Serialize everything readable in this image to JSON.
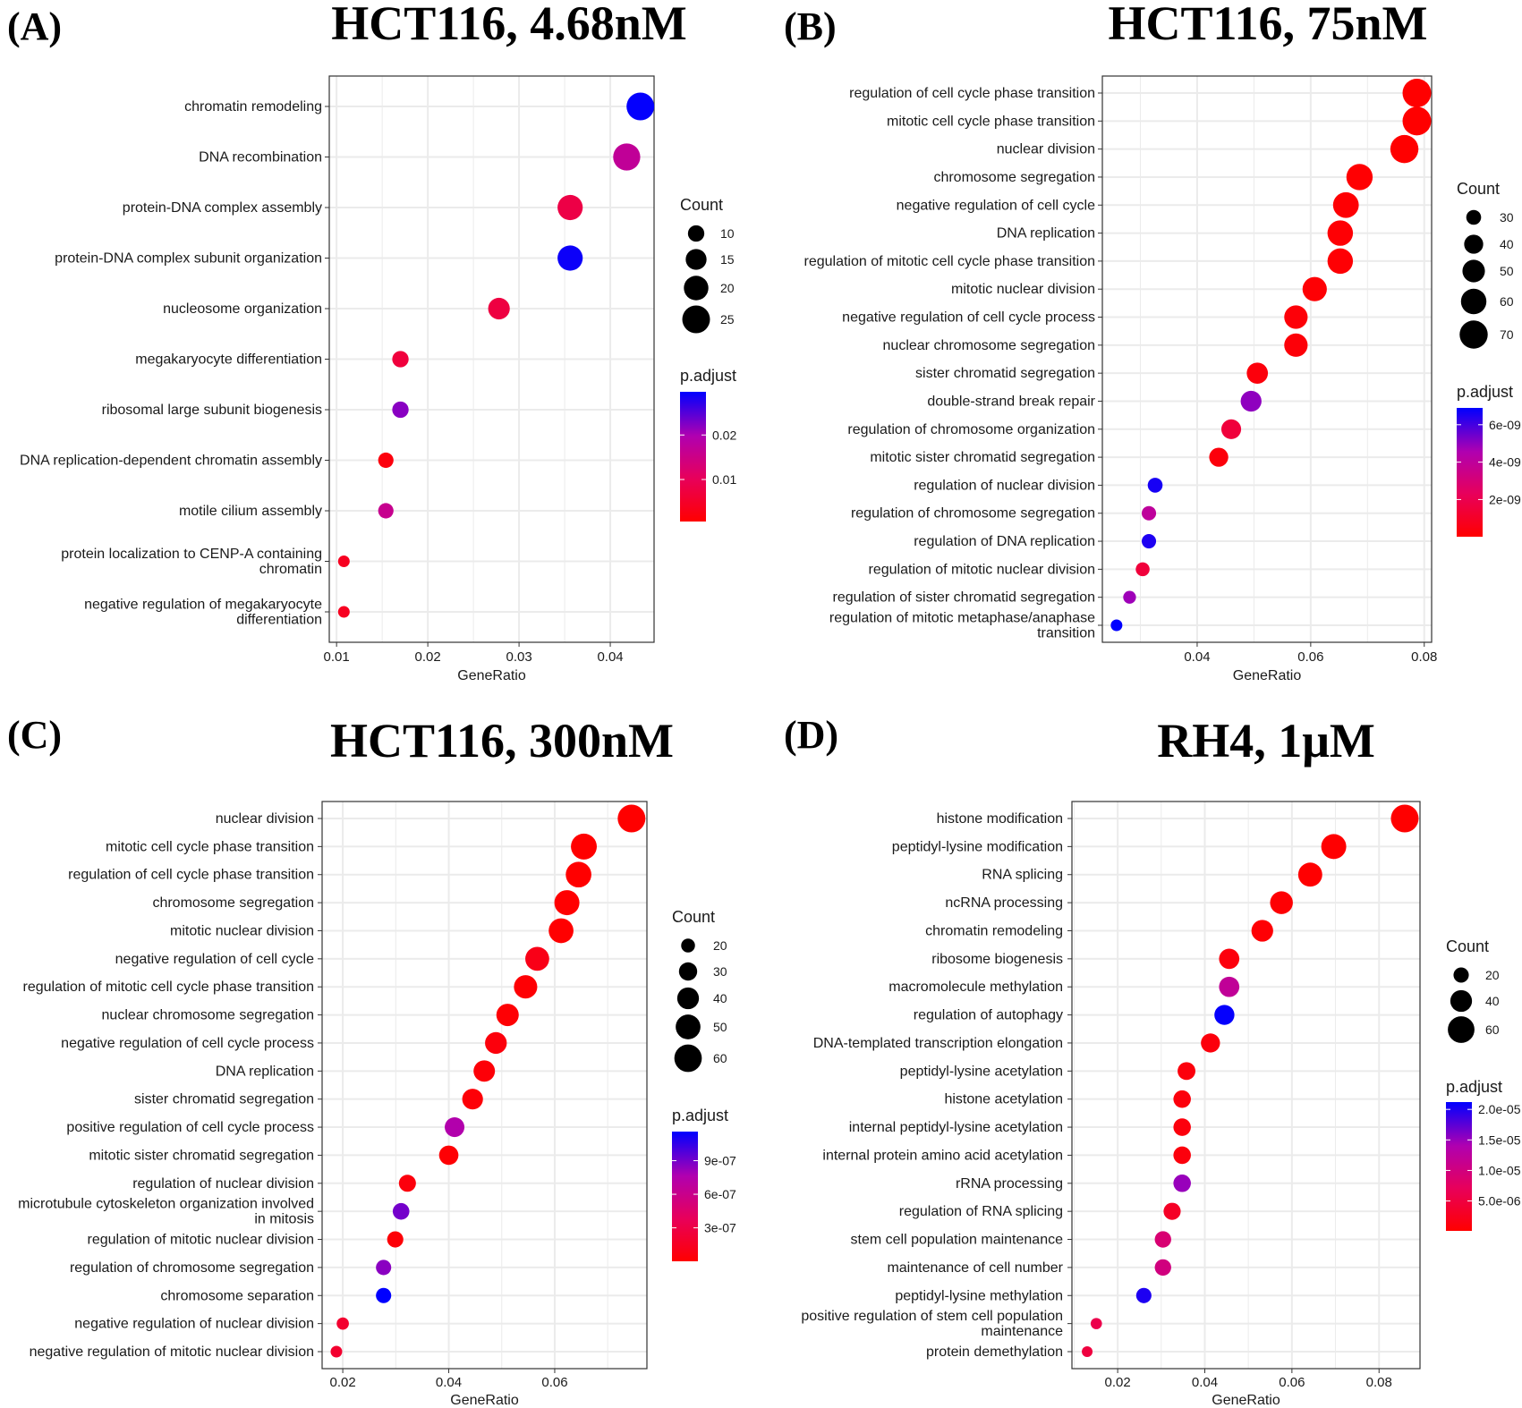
{
  "colors": {
    "low": "#FF0000",
    "high": "#0000FF",
    "grid": "#EBEBEB",
    "frame": "#333333"
  },
  "chart_data": [
    {
      "type": "scatter",
      "panel_label": "(A)",
      "title": "HCT116, 4.68nM",
      "xlabel": "GeneRatio",
      "xlim": [
        0.0092,
        0.0448
      ],
      "xticks": [
        0.01,
        0.02,
        0.03,
        0.04
      ],
      "xtick_labels": [
        "0.01",
        "0.02",
        "0.03",
        "0.04"
      ],
      "grid": true,
      "legend_placement": "right",
      "size_legend": {
        "title": "Count",
        "breaks": [
          10,
          15,
          20,
          25
        ],
        "labels": [
          "10",
          "15",
          "20",
          "25"
        ]
      },
      "color_legend": {
        "title": "p.adjust",
        "range": [
          0.00056,
          0.0297
        ],
        "ticks": [
          0.01,
          0.02
        ],
        "labels": [
          "0.01",
          "0.02"
        ]
      },
      "categories": [
        "chromatin remodeling",
        "DNA recombination",
        "protein-DNA complex assembly",
        "protein-DNA complex subunit organization",
        "nucleosome organization",
        "megakaryocyte differentiation",
        "ribosomal large subunit biogenesis",
        "DNA replication-dependent chromatin assembly",
        "motile cilium assembly",
        "protein localization to CENP-A containing\nchromatin",
        "negative regulation of megakaryocyte\ndifferentiation"
      ],
      "x": [
        0.0433,
        0.0418,
        0.0356,
        0.0356,
        0.0278,
        0.017,
        0.017,
        0.0154,
        0.0154,
        0.0108,
        0.0108
      ],
      "count": [
        25,
        24,
        21,
        21,
        16,
        10,
        10,
        9,
        9,
        6,
        6
      ],
      "p_adjust": [
        0.0295,
        0.017,
        0.008,
        0.029,
        0.0075,
        0.007,
        0.022,
        0.002,
        0.016,
        0.004,
        0.004
      ]
    },
    {
      "type": "scatter",
      "panel_label": "(B)",
      "title": "HCT116, 75nM",
      "xlabel": "GeneRatio",
      "xlim": [
        0.0233,
        0.0813
      ],
      "xticks": [
        0.04,
        0.06,
        0.08
      ],
      "xtick_labels": [
        "0.04",
        "0.06",
        "0.08"
      ],
      "grid": true,
      "legend_placement": "right",
      "size_legend": {
        "title": "Count",
        "breaks": [
          30,
          40,
          50,
          60,
          70
        ],
        "labels": [
          "30",
          "40",
          "50",
          "60",
          "70"
        ]
      },
      "color_legend": {
        "title": "p.adjust",
        "range": [
          1e-11,
          6.9e-09
        ],
        "ticks": [
          2e-09,
          4e-09,
          6e-09
        ],
        "labels": [
          "2e-09",
          "4e-09",
          "6e-09"
        ]
      },
      "categories": [
        "regulation of cell cycle phase transition",
        "mitotic cell cycle phase transition",
        "nuclear division",
        "chromosome segregation",
        "negative regulation of cell cycle",
        "DNA replication",
        "regulation of mitotic cell cycle phase transition",
        "mitotic nuclear division",
        "negative regulation of cell cycle process",
        "nuclear chromosome segregation",
        "sister chromatid segregation",
        "double-strand break repair",
        "regulation of chromosome organization",
        "mitotic sister chromatid segregation",
        "regulation of nuclear division",
        "regulation of chromosome segregation",
        "regulation of DNA replication",
        "regulation of mitotic nuclear division",
        "regulation of sister chromatid segregation",
        "regulation of mitotic metaphase/anaphase\ntransition"
      ],
      "x": [
        0.0787,
        0.0787,
        0.0765,
        0.0686,
        0.0662,
        0.0652,
        0.0652,
        0.0607,
        0.0574,
        0.0574,
        0.0506,
        0.0495,
        0.046,
        0.0438,
        0.0326,
        0.0315,
        0.0315,
        0.0304,
        0.0281,
        0.0258
      ],
      "count": [
        72,
        72,
        70,
        63,
        61,
        60,
        60,
        56,
        53,
        53,
        46,
        45,
        42,
        40,
        30,
        29,
        29,
        28,
        26,
        24
      ],
      "p_adjust": [
        1e-11,
        1e-11,
        2e-11,
        5e-11,
        8e-11,
        1e-10,
        1e-10,
        1.2e-10,
        2e-10,
        2e-10,
        3e-10,
        5e-09,
        1.5e-09,
        3e-10,
        6.6e-09,
        4e-09,
        6.5e-09,
        1.5e-09,
        4.8e-09,
        6.9e-09
      ]
    },
    {
      "type": "scatter",
      "panel_label": "(C)",
      "title": "HCT116, 300nM",
      "xlabel": "GeneRatio",
      "xlim": [
        0.0161,
        0.0774
      ],
      "xticks": [
        0.02,
        0.04,
        0.06
      ],
      "xtick_labels": [
        "0.02",
        "0.04",
        "0.06"
      ],
      "grid": true,
      "legend_placement": "right",
      "size_legend": {
        "title": "Count",
        "breaks": [
          20,
          30,
          40,
          50,
          60
        ],
        "labels": [
          "20",
          "30",
          "40",
          "50",
          "60"
        ]
      },
      "color_legend": {
        "title": "p.adjust",
        "range": [
          1e-09,
          1.16e-06
        ],
        "ticks": [
          3e-07,
          6e-07,
          9e-07
        ],
        "labels": [
          "3e-07",
          "6e-07",
          "9e-07"
        ]
      },
      "categories": [
        "nuclear division",
        "mitotic cell cycle phase transition",
        "regulation of cell cycle phase transition",
        "chromosome segregation",
        "mitotic nuclear division",
        "negative regulation of cell cycle",
        "regulation of mitotic cell cycle phase transition",
        "nuclear chromosome segregation",
        "negative regulation of cell cycle process",
        "DNA replication",
        "sister chromatid segregation",
        "positive regulation of cell cycle process",
        "mitotic sister chromatid segregation",
        "regulation of nuclear division",
        "microtubule cytoskeleton organization involved\nin mitosis",
        "regulation of mitotic nuclear division",
        "regulation of chromosome segregation",
        "chromosome separation",
        "negative regulation of nuclear division",
        "negative regulation of mitotic nuclear division"
      ],
      "x": [
        0.0745,
        0.0655,
        0.0645,
        0.0623,
        0.0612,
        0.0567,
        0.0545,
        0.0511,
        0.0489,
        0.0467,
        0.0445,
        0.0411,
        0.04,
        0.0322,
        0.031,
        0.0299,
        0.0277,
        0.0277,
        0.02,
        0.0188
      ],
      "count": [
        61,
        54,
        53,
        51,
        50,
        47,
        45,
        42,
        40,
        39,
        37,
        34,
        33,
        27,
        26,
        25,
        23,
        23,
        17,
        16
      ],
      "p_adjust": [
        1e-09,
        2e-09,
        3e-09,
        5e-09,
        6e-09,
        1e-07,
        2e-08,
        2e-08,
        5e-08,
        3e-08,
        3e-08,
        7.5e-07,
        2e-08,
        5e-08,
        9e-07,
        3e-08,
        8.5e-07,
        1.16e-06,
        2e-07,
        2e-07
      ]
    },
    {
      "type": "scatter",
      "panel_label": "(D)",
      "title": "RH4, 1μM",
      "xlabel": "GeneRatio",
      "xlim": [
        0.0095,
        0.0894
      ],
      "xticks": [
        0.02,
        0.04,
        0.06,
        0.08
      ],
      "xtick_labels": [
        "0.02",
        "0.04",
        "0.06",
        "0.08"
      ],
      "grid": true,
      "legend_placement": "right",
      "size_legend": {
        "title": "Count",
        "breaks": [
          20,
          40,
          60
        ],
        "labels": [
          "20",
          "40",
          "60"
        ]
      },
      "color_legend": {
        "title": "p.adjust",
        "range": [
          1e-07,
          2.12e-05
        ],
        "ticks": [
          5e-06,
          1e-05,
          1.5e-05,
          2e-05
        ],
        "labels": [
          "5.0e-06",
          "1.0e-05",
          "1.5e-05",
          "2.0e-05"
        ]
      },
      "categories": [
        "histone modification",
        "peptidyl-lysine modification",
        "RNA splicing",
        "ncRNA processing",
        "chromatin remodeling",
        "ribosome biogenesis",
        "macromolecule methylation",
        "regulation of autophagy",
        "DNA-templated transcription elongation",
        "peptidyl-lysine acetylation",
        "histone acetylation",
        "internal peptidyl-lysine acetylation",
        "internal protein amino acid acetylation",
        "rRNA processing",
        "regulation of RNA splicing",
        "stem cell population maintenance",
        "maintenance of cell number",
        "peptidyl-lysine methylation",
        "positive regulation of stem cell population\nmaintenance",
        "protein demethylation"
      ],
      "x": [
        0.0859,
        0.0696,
        0.0642,
        0.0576,
        0.0532,
        0.0456,
        0.0456,
        0.0445,
        0.0413,
        0.0358,
        0.0348,
        0.0348,
        0.0348,
        0.0348,
        0.0325,
        0.0304,
        0.0304,
        0.026,
        0.0151,
        0.013
      ],
      "count": [
        65,
        53,
        49,
        44,
        40,
        35,
        35,
        34,
        31,
        27,
        26,
        26,
        26,
        26,
        25,
        23,
        23,
        20,
        11,
        10
      ],
      "p_adjust": [
        1e-07,
        2e-07,
        2e-07,
        3e-07,
        5e-07,
        1e-06,
        1.2e-05,
        2.1e-05,
        1e-06,
        1e-06,
        1e-06,
        1e-06,
        1e-06,
        1.5e-05,
        3e-06,
        9e-06,
        1e-05,
        2e-05,
        6e-06,
        5e-06
      ]
    }
  ]
}
